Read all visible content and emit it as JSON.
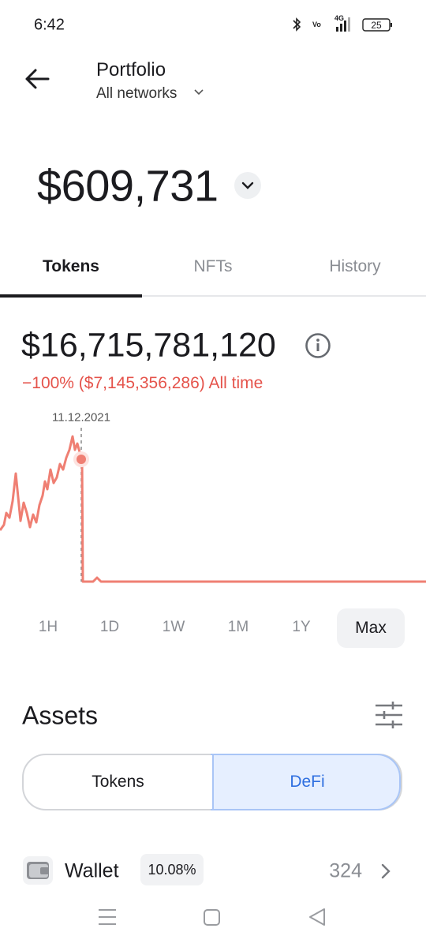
{
  "status_bar": {
    "time": "6:42",
    "network": "4G",
    "battery": "25"
  },
  "header": {
    "title": "Portfolio",
    "subtitle": "All networks"
  },
  "balance": "$609,731",
  "tabs": [
    "Tokens",
    "NFTs",
    "History"
  ],
  "token_summary": {
    "value": "$16,715,781,120",
    "change": "−100% ($7,145,356,286) All time",
    "chart_date": "11.12.2021"
  },
  "ranges": [
    "1H",
    "1D",
    "1W",
    "1M",
    "1Y",
    "Max"
  ],
  "assets": {
    "title": "Assets",
    "toggle": [
      "Tokens",
      "DeFi"
    ],
    "rows": [
      {
        "name": "Wallet",
        "share": "10.08%",
        "value": "324"
      }
    ]
  }
}
